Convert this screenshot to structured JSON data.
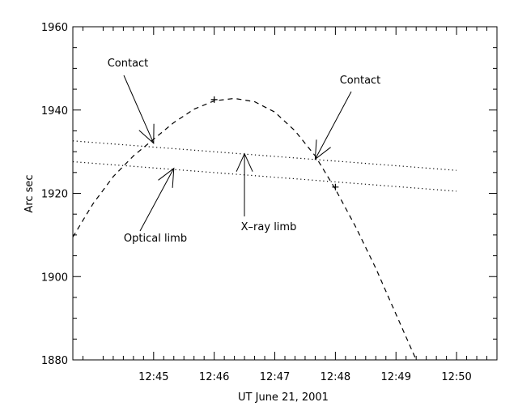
{
  "chart_data": {
    "type": "line",
    "title": "",
    "xlabel": "UT June 21, 2001",
    "ylabel": "Arc sec",
    "xlim": [
      "12:43:40",
      "12:50:40"
    ],
    "ylim": [
      1880,
      1960
    ],
    "x_ticks": [
      "12:45",
      "12:46",
      "12:47",
      "12:48",
      "12:49",
      "12:50"
    ],
    "y_ticks": [
      1880,
      1900,
      1920,
      1940,
      1960
    ],
    "grid": false,
    "legend": "none",
    "series": [
      {
        "style": "dashed",
        "x": [
          "12:43:40",
          "12:44:00",
          "12:44:20",
          "12:44:40",
          "12:45:00",
          "12:45:20",
          "12:45:40",
          "12:46:00",
          "12:46:20",
          "12:46:40",
          "12:47:00",
          "12:47:20",
          "12:47:40",
          "12:48:00",
          "12:48:20",
          "12:48:40",
          "12:49:00",
          "12:49:20"
        ],
        "y": [
          1909.5,
          1917.5,
          1924,
          1929,
          1933,
          1937,
          1940.2,
          1942.2,
          1942.8,
          1942,
          1939.5,
          1935,
          1929,
          1921,
          1912,
          1902,
          1891,
          1880
        ]
      },
      {
        "style": "dotted",
        "x": [
          "12:43:40",
          "12:50:00"
        ],
        "y": [
          1932.6,
          1925.5
        ]
      },
      {
        "style": "dotted",
        "x": [
          "12:43:40",
          "12:50:00"
        ],
        "y": [
          1927.6,
          1920.5
        ]
      }
    ],
    "markers": [
      {
        "x": "12:46:00",
        "y": 1942.5
      },
      {
        "x": "12:48:00",
        "y": 1921.5
      }
    ],
    "annotations": [
      {
        "text": "Contact",
        "x": "12:45:00",
        "y": 1932
      },
      {
        "text": "Contact",
        "x": "12:47:40",
        "y": 1928.2
      },
      {
        "text": "Optical limb",
        "x": "12:45:20",
        "y": 1926
      },
      {
        "text": "X–ray limb",
        "x": "12:46:30",
        "y": 1929.5
      }
    ]
  }
}
